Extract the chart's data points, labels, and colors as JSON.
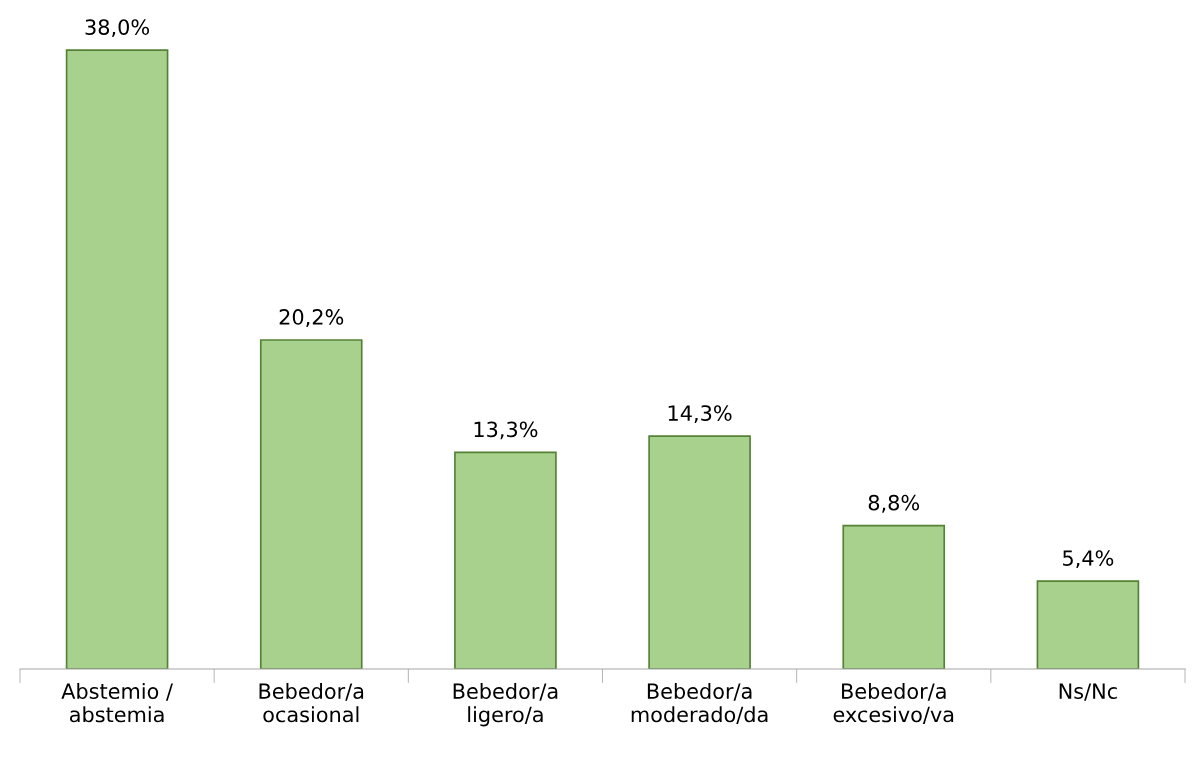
{
  "chart_data": {
    "type": "bar",
    "categories": [
      "Abstemio /\nabstemia",
      "Bebedor/a\nocasional",
      "Bebedor/a\nligero/a",
      "Bebedor/a\nmoderado/da",
      "Bebedor/a\nexcesivo/va",
      "Ns/Nc"
    ],
    "values": [
      38.0,
      20.2,
      13.3,
      14.3,
      8.8,
      5.4
    ],
    "value_labels": [
      "38,0%",
      "20,2%",
      "13,3%",
      "14,3%",
      "8,8%",
      "5,4%"
    ],
    "color": "#a9d18e",
    "grid": false,
    "legend": false
  }
}
